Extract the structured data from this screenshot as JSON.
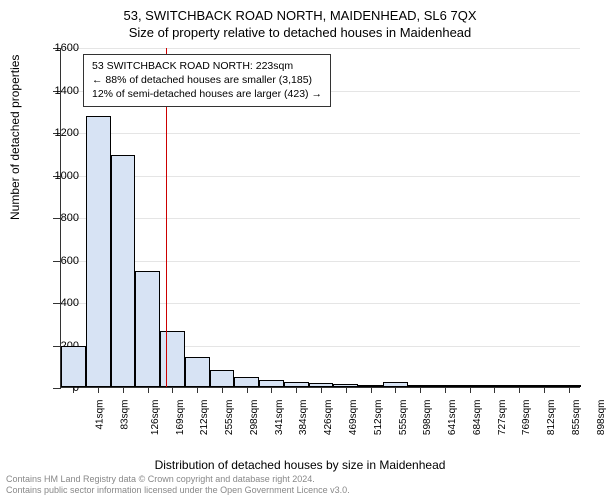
{
  "chart": {
    "type": "histogram",
    "title": "53, SWITCHBACK ROAD NORTH, MAIDENHEAD, SL6 7QX",
    "subtitle": "Size of property relative to detached houses in Maidenhead",
    "y_axis_title": "Number of detached properties",
    "x_axis_title": "Distribution of detached houses by size in Maidenhead",
    "background_color": "#ffffff",
    "grid_color": "#e5e5e5",
    "axis_color": "#333333",
    "bar_fill": "#d7e3f4",
    "bar_border": "#000000",
    "ref_line_color": "#cc0000",
    "title_fontsize": 13,
    "label_fontsize": 12,
    "tick_fontsize": 11,
    "x_tick_fontsize": 10,
    "legend_fontsize": 10.5,
    "ylim": [
      0,
      1600
    ],
    "ytick_step": 200,
    "categories": [
      "41sqm",
      "83sqm",
      "126sqm",
      "169sqm",
      "212sqm",
      "255sqm",
      "298sqm",
      "341sqm",
      "384sqm",
      "426sqm",
      "469sqm",
      "512sqm",
      "555sqm",
      "598sqm",
      "641sqm",
      "684sqm",
      "727sqm",
      "769sqm",
      "812sqm",
      "855sqm",
      "898sqm"
    ],
    "values": [
      195,
      1275,
      1090,
      545,
      265,
      140,
      80,
      45,
      35,
      25,
      18,
      14,
      10,
      22,
      8,
      4,
      3,
      3,
      2,
      2,
      2
    ],
    "ref_line_bin_index": 4,
    "legend": {
      "line1": "53 SWITCHBACK ROAD NORTH: 223sqm",
      "line2": "← 88% of detached houses are smaller (3,185)",
      "line3": "12% of semi-detached houses are larger (423) →"
    }
  },
  "footer": {
    "line1": "Contains HM Land Registry data © Crown copyright and database right 2024.",
    "line2": "Contains public sector information licensed under the Open Government Licence v3.0."
  }
}
